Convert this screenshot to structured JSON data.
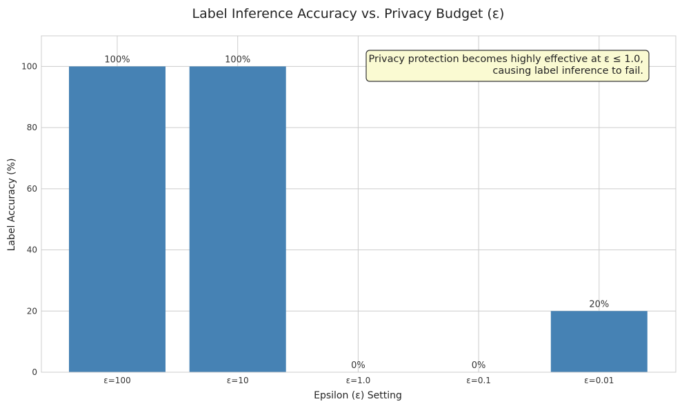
{
  "chart_data": {
    "type": "bar",
    "title": "Label Inference Accuracy vs. Privacy Budget (ε)",
    "xlabel": "Epsilon (ε) Setting",
    "ylabel": "Label Accuracy (%)",
    "categories": [
      "ε=100",
      "ε=10",
      "ε=1.0",
      "ε=0.1",
      "ε=0.01"
    ],
    "values": [
      100,
      100,
      0,
      0,
      20
    ],
    "data_labels": [
      "100%",
      "100%",
      "0%",
      "0%",
      "20%"
    ],
    "ylim": [
      0,
      110
    ],
    "yticks": [
      0,
      20,
      40,
      60,
      80,
      100
    ],
    "grid": true,
    "bar_color": "#4682b4",
    "annotation": {
      "lines": [
        "Privacy protection becomes highly effective at ε ≤ 1.0,",
        "causing label inference to fail."
      ],
      "background": "#fafad2",
      "border": "#333333"
    }
  }
}
